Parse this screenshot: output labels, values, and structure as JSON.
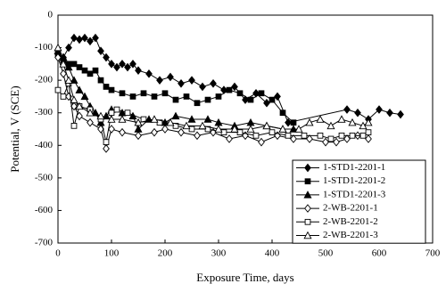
{
  "chart_data": {
    "type": "line",
    "x_label": "Exposure Time, days",
    "y_label": "Potential, V (SCE)",
    "xlim": [
      0,
      700
    ],
    "xticks": [
      0,
      100,
      200,
      300,
      400,
      500,
      600,
      700
    ],
    "ylim": [
      -700,
      0
    ],
    "yticks": [
      0,
      -100,
      -200,
      -300,
      -400,
      -500,
      -600,
      -700
    ],
    "grid": false,
    "legend": "lower right",
    "series": [
      {
        "name": "1-STD1-2201-1",
        "color": "#000000",
        "marker": "diamond",
        "filled": true,
        "x": [
          0,
          10,
          20,
          30,
          40,
          50,
          60,
          70,
          80,
          90,
          100,
          110,
          120,
          130,
          140,
          150,
          170,
          190,
          210,
          230,
          250,
          270,
          290,
          310,
          330,
          350,
          370,
          390,
          410,
          430,
          540,
          560,
          580,
          600,
          620,
          640
        ],
        "values": [
          -120,
          -130,
          -100,
          -70,
          -75,
          -70,
          -80,
          -70,
          -110,
          -130,
          -150,
          -160,
          -150,
          -160,
          -150,
          -170,
          -180,
          -200,
          -190,
          -210,
          -200,
          -220,
          -210,
          -230,
          -220,
          -260,
          -240,
          -270,
          -250,
          -330,
          -290,
          -300,
          -320,
          -290,
          -300,
          -305
        ]
      },
      {
        "name": "1-STD1-2201-2",
        "color": "#000000",
        "marker": "square",
        "filled": true,
        "x": [
          0,
          10,
          20,
          30,
          40,
          50,
          60,
          70,
          80,
          90,
          100,
          120,
          140,
          160,
          180,
          200,
          220,
          240,
          260,
          280,
          300,
          320,
          340,
          360,
          380,
          400,
          420,
          440
        ],
        "values": [
          -120,
          -140,
          -150,
          -150,
          -160,
          -170,
          -180,
          -170,
          -200,
          -220,
          -230,
          -240,
          -250,
          -240,
          -250,
          -240,
          -260,
          -250,
          -270,
          -260,
          -250,
          -230,
          -240,
          -260,
          -240,
          -260,
          -300,
          -330
        ]
      },
      {
        "name": "1-STD1-2201-3",
        "color": "#000000",
        "marker": "triangle",
        "filled": true,
        "x": [
          0,
          10,
          20,
          30,
          40,
          50,
          60,
          70,
          80,
          90,
          100,
          120,
          140,
          150,
          170,
          200,
          220,
          250,
          280,
          300,
          330,
          360,
          390,
          420,
          440
        ],
        "values": [
          -110,
          -130,
          -160,
          -200,
          -230,
          -250,
          -280,
          -300,
          -330,
          -310,
          -290,
          -300,
          -310,
          -350,
          -320,
          -330,
          -310,
          -320,
          -320,
          -330,
          -340,
          -330,
          -340,
          -350,
          -350
        ]
      },
      {
        "name": "2-WB-2201-1",
        "color": "#000000",
        "marker": "diamond",
        "filled": false,
        "x": [
          0,
          10,
          20,
          30,
          40,
          60,
          80,
          90,
          100,
          120,
          150,
          180,
          200,
          230,
          260,
          290,
          320,
          350,
          380,
          410,
          440,
          470,
          500,
          520,
          540,
          560,
          580
        ],
        "values": [
          -130,
          -180,
          -250,
          -280,
          -310,
          -330,
          -350,
          -410,
          -350,
          -360,
          -370,
          -360,
          -350,
          -360,
          -370,
          -360,
          -380,
          -370,
          -390,
          -370,
          -380,
          -380,
          -390,
          -390,
          -380,
          -370,
          -380
        ]
      },
      {
        "name": "2-WB-2201-2",
        "color": "#000000",
        "marker": "square",
        "filled": false,
        "x": [
          0,
          10,
          20,
          30,
          40,
          60,
          80,
          90,
          100,
          110,
          130,
          160,
          190,
          220,
          250,
          280,
          310,
          340,
          370,
          400,
          430,
          460,
          490,
          510,
          530,
          550,
          570,
          580
        ],
        "values": [
          -230,
          -250,
          -210,
          -340,
          -280,
          -290,
          -320,
          -390,
          -300,
          -290,
          -300,
          -320,
          -330,
          -340,
          -350,
          -350,
          -360,
          -360,
          -370,
          -360,
          -370,
          -370,
          -370,
          -380,
          -370,
          -370,
          -370,
          -360
        ]
      },
      {
        "name": "2-WB-2201-3",
        "color": "#000000",
        "marker": "triangle",
        "filled": false,
        "x": [
          0,
          10,
          20,
          30,
          40,
          60,
          80,
          100,
          120,
          150,
          180,
          210,
          240,
          270,
          300,
          330,
          360,
          390,
          420,
          450,
          470,
          490,
          510,
          530,
          550,
          570,
          580
        ],
        "values": [
          -100,
          -150,
          -200,
          -260,
          -280,
          -300,
          -310,
          -320,
          -320,
          -330,
          -320,
          -330,
          -340,
          -340,
          -350,
          -350,
          -350,
          -340,
          -350,
          -350,
          -330,
          -320,
          -340,
          -320,
          -330,
          -340,
          -330
        ]
      }
    ]
  }
}
